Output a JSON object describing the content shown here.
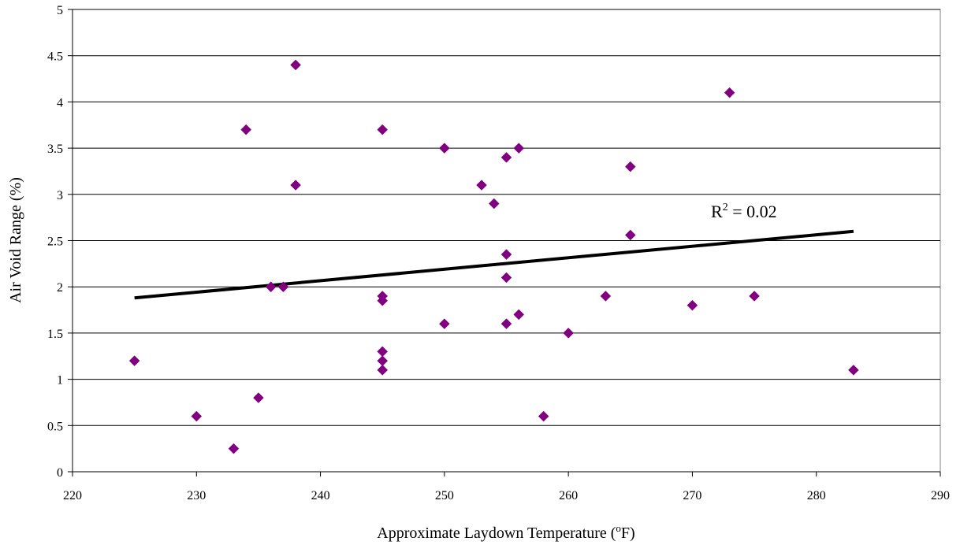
{
  "chart_data": {
    "type": "scatter",
    "xlabel": "Approximate Laydown Temperature (",
    "xlabel_sup": "o",
    "xlabel_tail": "F)",
    "ylabel": "Air Void Range (%)",
    "xlim": [
      220,
      290
    ],
    "ylim": [
      0,
      5
    ],
    "x_ticks": [
      "220",
      "230",
      "240",
      "250",
      "260",
      "270",
      "280",
      "290"
    ],
    "y_ticks": [
      "0",
      "0.5",
      "1",
      "1.5",
      "2",
      "2.5",
      "3",
      "3.5",
      "4",
      "4.5",
      "5"
    ],
    "grid": "horizontal",
    "marker_color": "#800080",
    "trendline_color": "#000000",
    "series": [
      {
        "points": [
          [
            225,
            1.2
          ],
          [
            230,
            0.6
          ],
          [
            233,
            0.25
          ],
          [
            234,
            3.7
          ],
          [
            235,
            0.8
          ],
          [
            236,
            2.0
          ],
          [
            237,
            2.0
          ],
          [
            238,
            4.4
          ],
          [
            238,
            3.1
          ],
          [
            245,
            3.7
          ],
          [
            245,
            1.9
          ],
          [
            245,
            1.85
          ],
          [
            245,
            1.3
          ],
          [
            245,
            1.2
          ],
          [
            245,
            1.1
          ],
          [
            250,
            3.5
          ],
          [
            250,
            1.6
          ],
          [
            253,
            3.1
          ],
          [
            254,
            2.9
          ],
          [
            255,
            3.4
          ],
          [
            255,
            2.35
          ],
          [
            255,
            2.1
          ],
          [
            255,
            1.6
          ],
          [
            256,
            3.5
          ],
          [
            256,
            1.7
          ],
          [
            258,
            0.6
          ],
          [
            260,
            1.5
          ],
          [
            263,
            1.9
          ],
          [
            265,
            3.3
          ],
          [
            265,
            2.56
          ],
          [
            270,
            1.8
          ],
          [
            273,
            4.1
          ],
          [
            275,
            1.9
          ],
          [
            283,
            1.1
          ]
        ]
      }
    ],
    "trendline": {
      "x": [
        225,
        283
      ],
      "y": [
        1.88,
        2.6
      ]
    },
    "annotation": {
      "text_pre": "R",
      "text_sup": "2",
      "text_post": " = 0.02",
      "x": 271.5,
      "y": 2.75
    }
  }
}
